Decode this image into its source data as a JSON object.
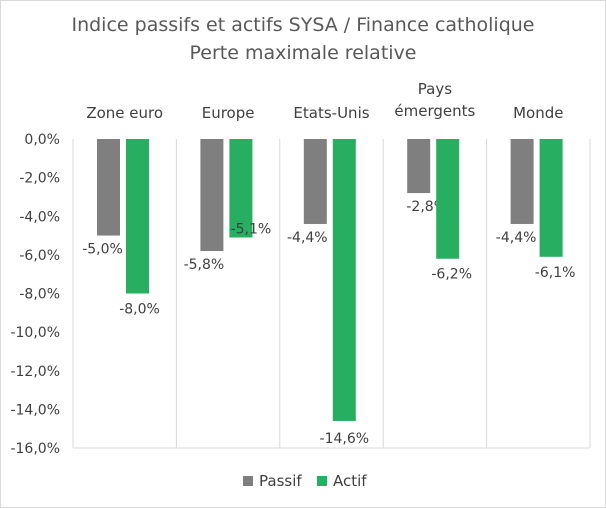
{
  "chart_data": {
    "type": "bar",
    "title": "Indice passifs et actifs SYSA / Finance catholique",
    "subtitle": "Perte maximale relative",
    "categories": [
      [
        "Zone euro"
      ],
      [
        "Europe"
      ],
      [
        "Etats-Unis"
      ],
      [
        "Pays",
        "émergents"
      ],
      [
        "Monde"
      ]
    ],
    "series": [
      {
        "name": "Passif",
        "color": "#7f7f7f",
        "values": [
          -5.0,
          -5.8,
          -4.4,
          -2.8,
          -4.4
        ],
        "labels": [
          "-5,0%",
          "-5,8%",
          "-4,4%",
          "-2,8%",
          "-4,4%"
        ]
      },
      {
        "name": "Actif",
        "color": "#27ae60",
        "values": [
          -8.0,
          -5.1,
          -14.6,
          -6.2,
          -6.1
        ],
        "labels": [
          "-8,0%",
          "-5,1%",
          "-14,6%",
          "-6,2%",
          "-6,1%"
        ]
      }
    ],
    "ylim": [
      -16,
      0
    ],
    "yticks": [
      "0,0%",
      "-2,0%",
      "-4,0%",
      "-6,0%",
      "-8,0%",
      "-10,0%",
      "-12,0%",
      "-14,0%",
      "-16,0%"
    ],
    "grid": "category separators",
    "legend": "bottom"
  }
}
